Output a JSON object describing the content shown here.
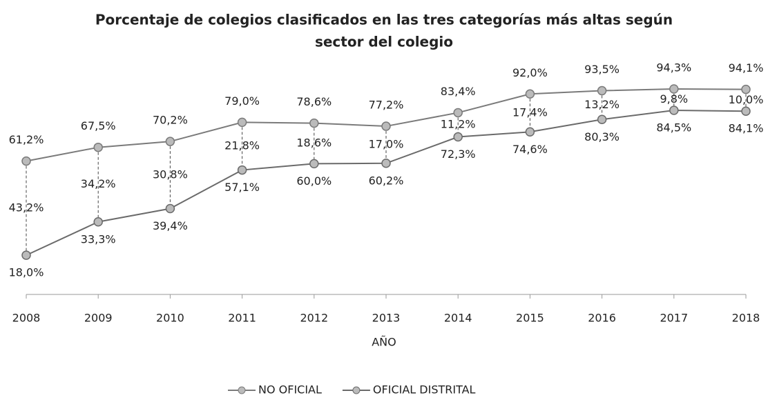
{
  "chart_data": {
    "type": "line",
    "title": "Porcentaje de colegios clasificados en las tres categorías más altas según sector del colegio",
    "xlabel": "AÑO",
    "categories": [
      "2008",
      "2009",
      "2010",
      "2011",
      "2012",
      "2013",
      "2014",
      "2015",
      "2016",
      "2017",
      "2018"
    ],
    "ylim": [
      0,
      100
    ],
    "series": [
      {
        "name": "NO OFICIAL",
        "color": "#7a7a7a",
        "values": [
          61.2,
          67.5,
          70.2,
          79.0,
          78.6,
          77.2,
          83.4,
          92.0,
          93.5,
          94.3,
          94.1
        ],
        "value_labels": [
          "61,2%",
          "67,5%",
          "70,2%",
          "79,0%",
          "78,6%",
          "77,2%",
          "83,4%",
          "92,0%",
          "93,5%",
          "94,3%",
          "94,1%"
        ]
      },
      {
        "name": "OFICIAL DISTRITAL",
        "color": "#6a6a6a",
        "values": [
          18.0,
          33.3,
          39.4,
          57.1,
          60.0,
          60.2,
          72.3,
          74.6,
          80.3,
          84.5,
          84.1
        ],
        "value_labels": [
          "18,0%",
          "33,3%",
          "39,4%",
          "57,1%",
          "60,0%",
          "60,2%",
          "72,3%",
          "74,6%",
          "80,3%",
          "84,5%",
          "84,1%"
        ]
      }
    ],
    "differences": {
      "values": [
        43.2,
        34.2,
        30.8,
        21.8,
        18.6,
        17.0,
        11.2,
        17.4,
        13.2,
        9.8,
        10.0
      ],
      "value_labels": [
        "43,2%",
        "34,2%",
        "30,8%",
        "21,8%",
        "18,6%",
        "17,0%",
        "11,2%",
        "17,4%",
        "13,2%",
        "9,8%",
        "10,0%"
      ]
    },
    "legend": "bottom"
  }
}
